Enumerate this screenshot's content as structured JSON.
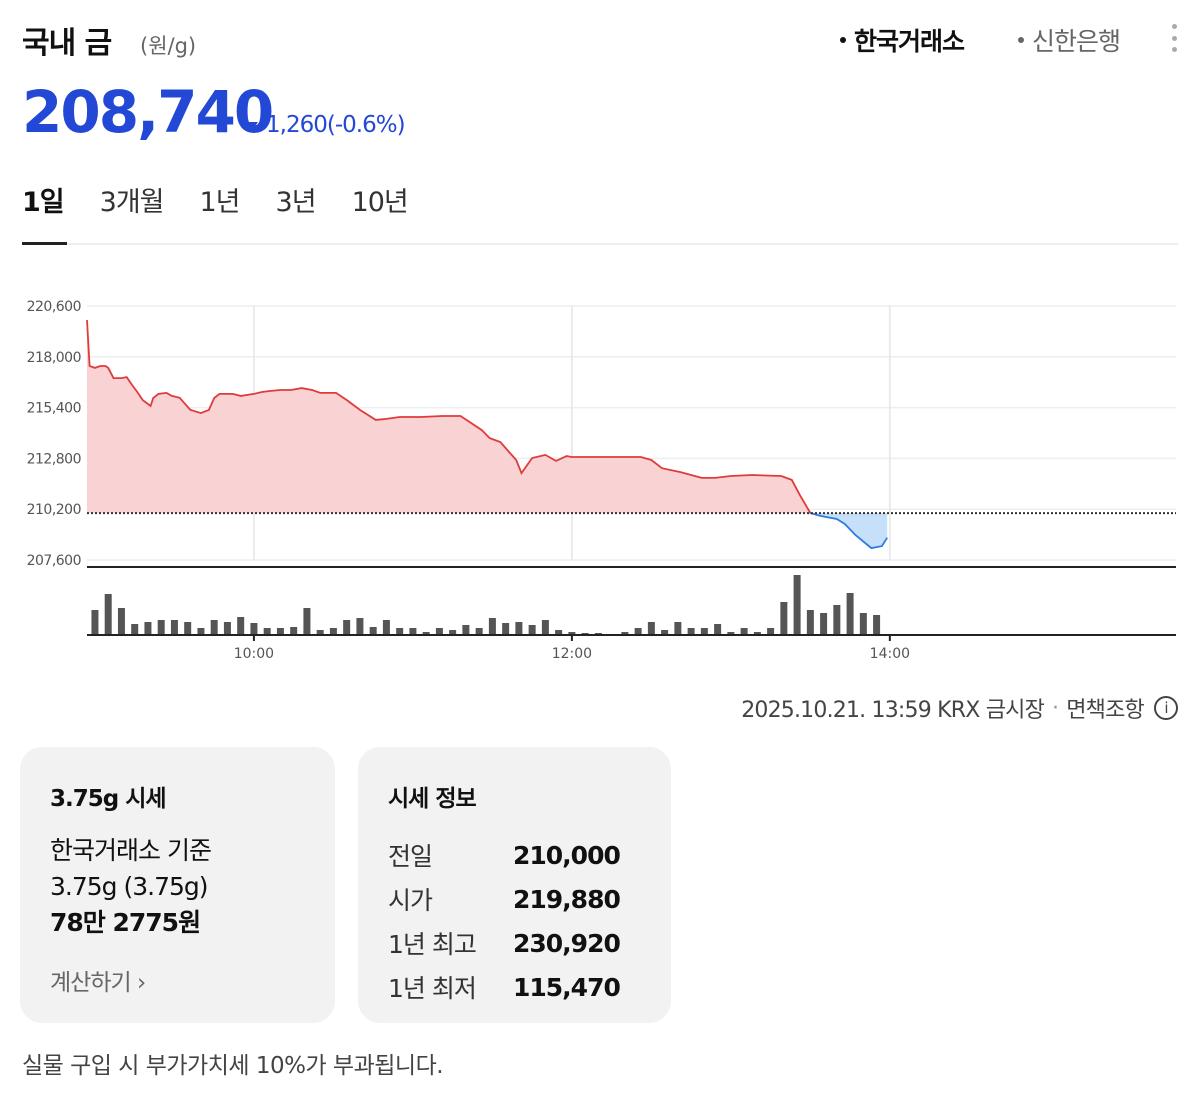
{
  "header": {
    "title": "국내 금",
    "unit": "(원/g)",
    "sources": [
      {
        "label": "한국거래소",
        "active": true
      },
      {
        "label": "신한은행",
        "active": false
      }
    ],
    "more_icon": "vertical-ellipsis-icon"
  },
  "quote": {
    "price": "208,740",
    "direction": "down",
    "change": "1,260",
    "change_pct": "(-0.6%)",
    "color_down": "#2348d6"
  },
  "tabs": [
    {
      "label": "1일",
      "active": true
    },
    {
      "label": "3개월",
      "active": false
    },
    {
      "label": "1년",
      "active": false
    },
    {
      "label": "3년",
      "active": false
    },
    {
      "label": "10년",
      "active": false
    }
  ],
  "chart_data": {
    "type": "area",
    "title": "",
    "xlabel": "",
    "ylabel": "",
    "ylim": [
      207600,
      220600
    ],
    "xlim": [
      "08:57",
      "15:48"
    ],
    "y_ticks": [
      "220,600",
      "218,000",
      "215,400",
      "212,800",
      "210,200",
      "207,600"
    ],
    "y_tick_values": [
      220600,
      218000,
      215400,
      212800,
      210200,
      207600
    ],
    "x_ticks": [
      "10:00",
      "12:00",
      "14:00"
    ],
    "grid": true,
    "reference_line": {
      "value": 210000,
      "style": "dotted",
      "meaning": "전일"
    },
    "colors": {
      "above": "#e03b3b",
      "above_fill": "#f9d2d3",
      "below": "#2a7de1",
      "below_fill": "#c7e0fa",
      "volume": "#555555"
    },
    "series": [
      {
        "x": [
          "08:57",
          "08:58",
          "09:00",
          "09:02",
          "09:04",
          "09:05",
          "09:07",
          "09:10",
          "09:12",
          "09:14",
          "09:16",
          "09:18",
          "09:21",
          "09:22",
          "09:24",
          "09:27",
          "09:29",
          "09:32",
          "09:36",
          "09:40",
          "09:43",
          "09:45",
          "09:47",
          "09:52",
          "09:55",
          "10:00",
          "10:03",
          "10:06",
          "10:10",
          "10:14",
          "10:18",
          "10:22",
          "10:25",
          "10:31",
          "10:35",
          "10:40",
          "10:46",
          "10:50",
          "10:55",
          "11:03",
          "11:11",
          "11:18",
          "11:26",
          "11:29",
          "11:33",
          "11:39",
          "11:41",
          "11:45",
          "11:50",
          "11:54",
          "11:58",
          "12:00",
          "12:11",
          "12:26",
          "12:30",
          "12:34",
          "12:41",
          "12:49",
          "12:54",
          "13:00",
          "13:08",
          "13:19",
          "13:23",
          "13:26",
          "13:30",
          "13:34",
          "13:40",
          "13:43",
          "13:47",
          "13:53",
          "13:57",
          "13:59"
        ],
        "values": [
          219880,
          217530,
          217430,
          217530,
          217530,
          217430,
          216910,
          216910,
          216960,
          216560,
          216200,
          215790,
          215480,
          215890,
          216100,
          216150,
          216000,
          215900,
          215280,
          215120,
          215280,
          215890,
          216100,
          216100,
          216000,
          216100,
          216200,
          216250,
          216300,
          216300,
          216400,
          216300,
          216150,
          216150,
          215790,
          215280,
          214770,
          214820,
          214920,
          214920,
          214970,
          214970,
          214250,
          213840,
          213640,
          212720,
          212050,
          212820,
          212980,
          212670,
          212920,
          212870,
          212870,
          212870,
          212720,
          212300,
          212100,
          211800,
          211800,
          211900,
          211950,
          211900,
          211700,
          210930,
          210000,
          209850,
          209700,
          209440,
          208880,
          208210,
          208310,
          208740
        ]
      }
    ],
    "volume": {
      "start": "09:00",
      "interval_minutes": 5,
      "values": [
        25,
        41,
        27,
        11,
        13,
        15,
        15,
        13,
        7,
        15,
        13,
        18,
        12,
        7,
        7,
        8,
        27,
        5,
        7,
        15,
        17,
        8,
        15,
        7,
        7,
        3,
        7,
        5,
        10,
        7,
        17,
        12,
        13,
        10,
        15,
        5,
        3,
        2,
        2,
        1,
        3,
        7,
        13,
        5,
        13,
        7,
        7,
        11,
        3,
        7,
        3,
        7,
        33,
        60,
        25,
        22,
        30,
        42,
        22,
        20
      ]
    }
  },
  "timestamp": {
    "text": "2025.10.21. 13:59 KRX 금시장",
    "disclaimer": "면책조항",
    "info_icon": "info-circle-icon"
  },
  "card_375": {
    "title": "3.75g 시세",
    "basis": "한국거래소 기준",
    "weight": "3.75g (3.75g)",
    "amount": "78만 2775원",
    "calc_label": "계산하기",
    "calc_icon": "chevron-right-icon"
  },
  "card_info": {
    "title": "시세 정보",
    "rows": [
      {
        "label": "전일",
        "value": "210,000"
      },
      {
        "label": "시가",
        "value": "219,880"
      },
      {
        "label": "1년 최고",
        "value": "230,920"
      },
      {
        "label": "1년 최저",
        "value": "115,470"
      }
    ]
  },
  "footer": {
    "vat_note": "실물 구입 시 부가가치세 10%가 부과됩니다."
  }
}
